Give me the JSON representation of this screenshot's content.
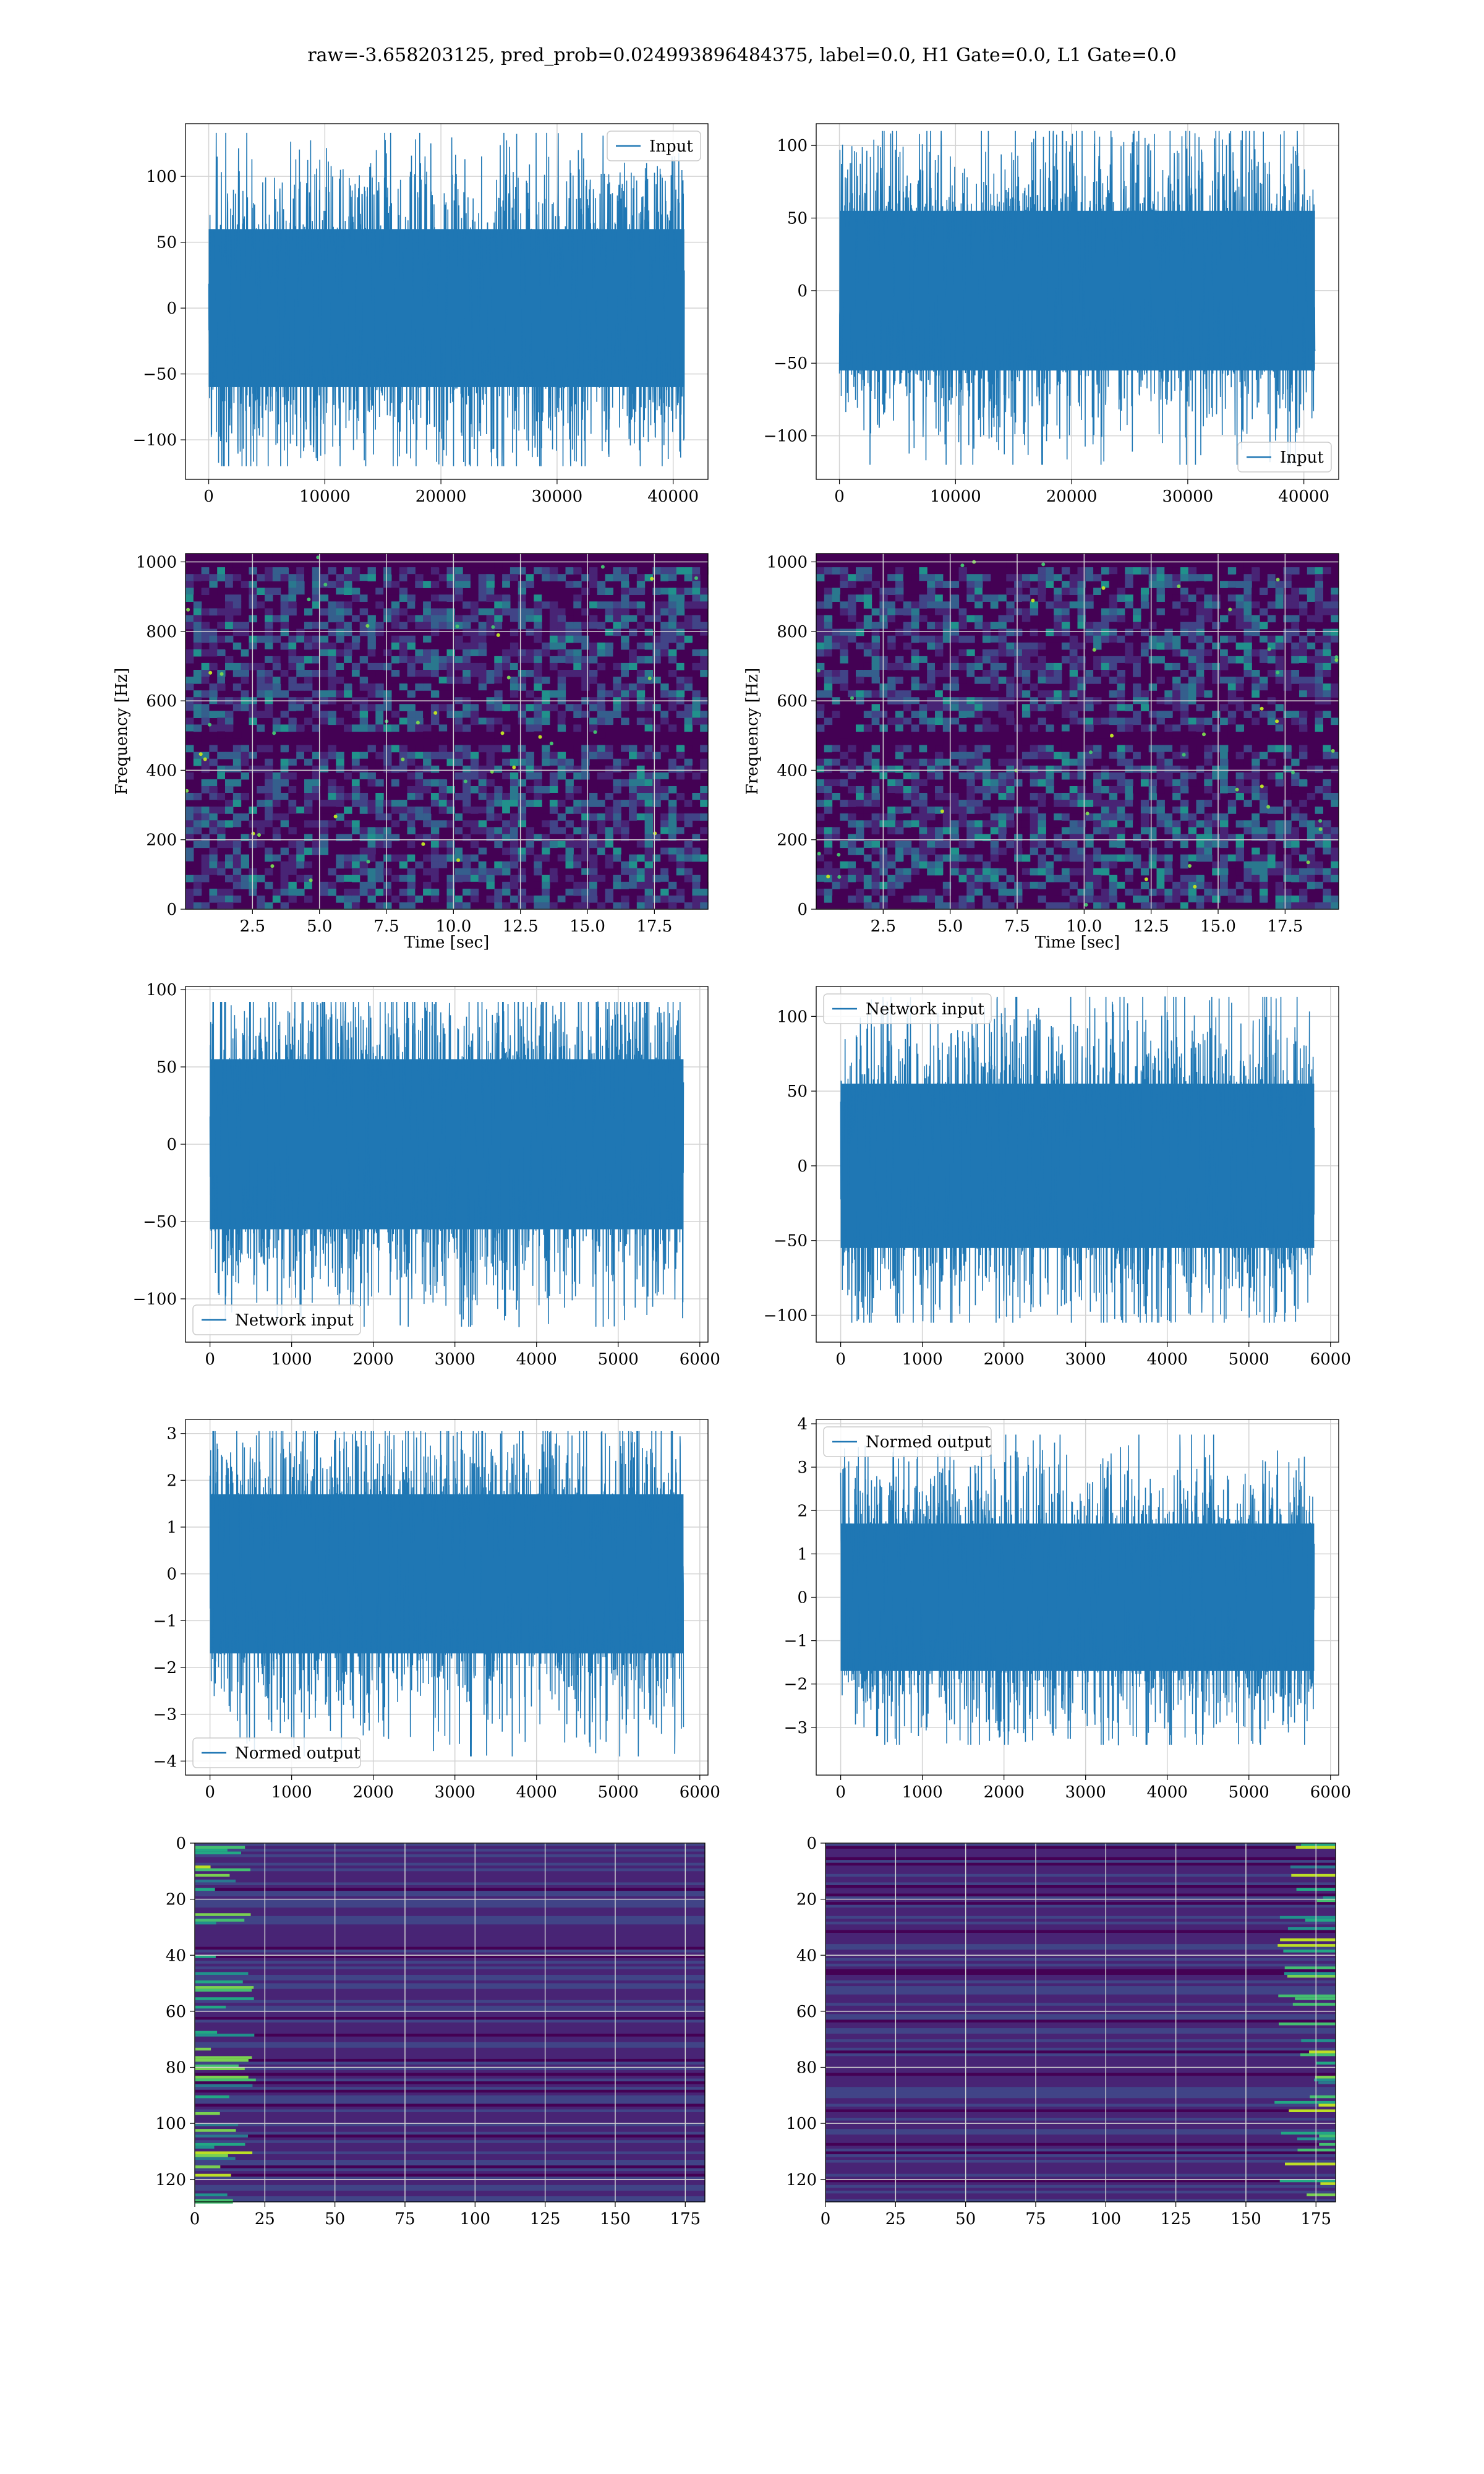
{
  "figure": {
    "title": "raw=-3.658203125, pred_prob=0.024993896484375, label=0.0, H1 Gate=0.0, L1 Gate=0.0"
  },
  "colors": {
    "series": "#1f77b4",
    "grid": "#d3d3d3",
    "viridis": [
      "#440154",
      "#482475",
      "#414487",
      "#355f8d",
      "#2a788e",
      "#21918c",
      "#22a884",
      "#44bf70",
      "#7ad151",
      "#bddf26",
      "#fde725"
    ]
  },
  "chart_data": [
    {
      "id": "input-h1",
      "type": "line",
      "series": [
        {
          "name": "Input",
          "x_range": [
            0,
            40960
          ],
          "y_band": [
            -60,
            60
          ],
          "y_extremes": [
            -120,
            133
          ]
        }
      ],
      "xlim": [
        -2000,
        43000
      ],
      "ylim": [
        -130,
        140
      ],
      "xticks": [
        0,
        10000,
        20000,
        30000,
        40000
      ],
      "yticks": [
        -100,
        -50,
        0,
        50,
        100
      ],
      "xlabel": "",
      "ylabel": "",
      "legend": "upper right",
      "grid": true
    },
    {
      "id": "input-l1",
      "type": "line",
      "series": [
        {
          "name": "Input",
          "x_range": [
            0,
            40960
          ],
          "y_band": [
            -55,
            55
          ],
          "y_extremes": [
            -120,
            110
          ]
        }
      ],
      "xlim": [
        -2000,
        43000
      ],
      "ylim": [
        -130,
        115
      ],
      "xticks": [
        0,
        10000,
        20000,
        30000,
        40000
      ],
      "yticks": [
        -100,
        -50,
        0,
        50,
        100
      ],
      "xlabel": "",
      "ylabel": "",
      "legend": "lower right",
      "grid": true
    },
    {
      "id": "spectrogram-h1",
      "type": "heatmap",
      "xlim": [
        0,
        19.5
      ],
      "ylim": [
        0,
        1024
      ],
      "xticks": [
        2.5,
        5.0,
        7.5,
        10.0,
        12.5,
        15.0,
        17.5
      ],
      "yticks": [
        0,
        200,
        400,
        600,
        800,
        1000
      ],
      "xlabel": "Time [sec]",
      "ylabel": "Frequency [Hz]",
      "grid": true,
      "dark_bands_hz": [
        500,
        1000
      ]
    },
    {
      "id": "spectrogram-l1",
      "type": "heatmap",
      "xlim": [
        0,
        19.5
      ],
      "ylim": [
        0,
        1024
      ],
      "xticks": [
        2.5,
        5.0,
        7.5,
        10.0,
        12.5,
        15.0,
        17.5
      ],
      "yticks": [
        0,
        200,
        400,
        600,
        800,
        1000
      ],
      "xlabel": "Time [sec]",
      "ylabel": "Frequency [Hz]",
      "grid": true,
      "dark_bands_hz": [
        500,
        1000
      ]
    },
    {
      "id": "network-input-h1",
      "type": "line",
      "series": [
        {
          "name": "Network input",
          "x_range": [
            0,
            5800
          ],
          "y_band": [
            -55,
            55
          ],
          "y_extremes": [
            -118,
            92
          ]
        }
      ],
      "xlim": [
        -300,
        6100
      ],
      "ylim": [
        -128,
        102
      ],
      "xticks": [
        0,
        1000,
        2000,
        3000,
        4000,
        5000,
        6000
      ],
      "yticks": [
        -100,
        -50,
        0,
        50,
        100
      ],
      "xlabel": "",
      "ylabel": "",
      "legend": "lower left",
      "grid": true
    },
    {
      "id": "network-input-l1",
      "type": "line",
      "series": [
        {
          "name": "Network input",
          "x_range": [
            0,
            5800
          ],
          "y_band": [
            -55,
            55
          ],
          "y_extremes": [
            -105,
            113
          ]
        }
      ],
      "xlim": [
        -300,
        6100
      ],
      "ylim": [
        -118,
        120
      ],
      "xticks": [
        0,
        1000,
        2000,
        3000,
        4000,
        5000,
        6000
      ],
      "yticks": [
        -100,
        -50,
        0,
        50,
        100
      ],
      "xlabel": "",
      "ylabel": "",
      "legend": "upper left",
      "grid": true
    },
    {
      "id": "normed-output-h1",
      "type": "line",
      "series": [
        {
          "name": "Normed output",
          "x_range": [
            0,
            5800
          ],
          "y_band": [
            -1.7,
            1.7
          ],
          "y_extremes": [
            -3.9,
            3.05
          ]
        }
      ],
      "xlim": [
        -300,
        6100
      ],
      "ylim": [
        -4.3,
        3.3
      ],
      "xticks": [
        0,
        1000,
        2000,
        3000,
        4000,
        5000,
        6000
      ],
      "yticks": [
        -4,
        -3,
        -2,
        -1,
        0,
        1,
        2,
        3
      ],
      "xlabel": "",
      "ylabel": "",
      "legend": "lower left",
      "grid": true
    },
    {
      "id": "normed-output-l1",
      "type": "line",
      "series": [
        {
          "name": "Normed output",
          "x_range": [
            0,
            5800
          ],
          "y_band": [
            -1.7,
            1.7
          ],
          "y_extremes": [
            -3.4,
            3.75
          ]
        }
      ],
      "xlim": [
        -300,
        6100
      ],
      "ylim": [
        -4.1,
        4.1
      ],
      "xticks": [
        0,
        1000,
        2000,
        3000,
        4000,
        5000,
        6000
      ],
      "yticks": [
        -3,
        -2,
        -1,
        0,
        1,
        2,
        3,
        4
      ],
      "xlabel": "",
      "ylabel": "",
      "legend": "upper left",
      "grid": true
    },
    {
      "id": "feature-map-h1",
      "type": "heatmap",
      "xlim": [
        0,
        182
      ],
      "ylim": [
        128,
        0
      ],
      "xticks": [
        0,
        25,
        50,
        75,
        100,
        125,
        150,
        175
      ],
      "yticks": [
        0,
        20,
        40,
        60,
        80,
        100,
        120
      ],
      "xlabel": "",
      "ylabel": "",
      "grid": true,
      "bright_side": "left"
    },
    {
      "id": "feature-map-l1",
      "type": "heatmap",
      "xlim": [
        0,
        182
      ],
      "ylim": [
        128,
        0
      ],
      "xticks": [
        0,
        25,
        50,
        75,
        100,
        125,
        150,
        175
      ],
      "yticks": [
        0,
        20,
        40,
        60,
        80,
        100,
        120
      ],
      "xlabel": "",
      "ylabel": "",
      "grid": true,
      "bright_side": "right"
    }
  ]
}
